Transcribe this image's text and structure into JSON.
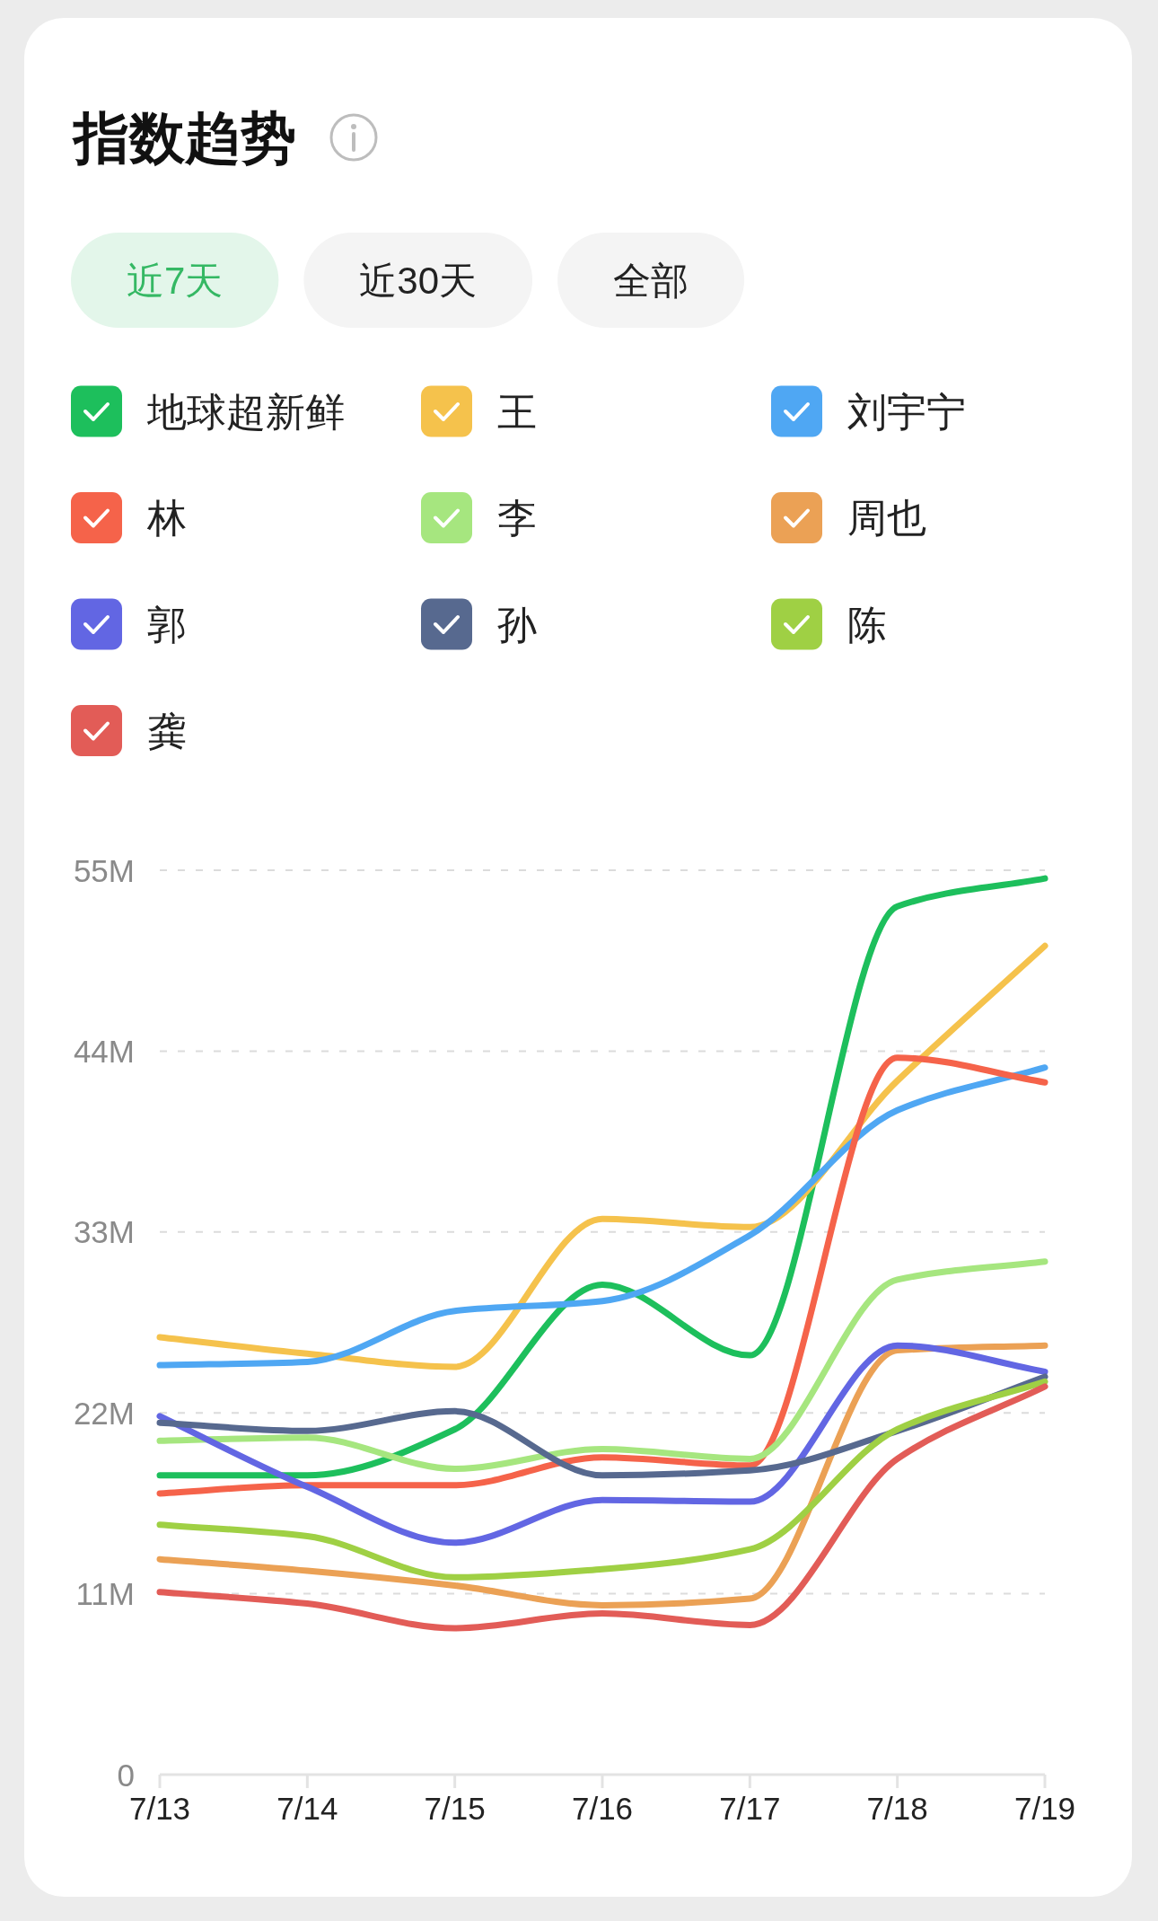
{
  "chart_data": {
    "type": "line",
    "title": "指数趋势",
    "annotations": [
      "近7天",
      "近30天",
      "全部"
    ],
    "categories": [
      "7/13",
      "7/14",
      "7/15",
      "7/16",
      "7/17",
      "7/18",
      "7/19"
    ],
    "series": [
      {
        "name": "地球超新鲜",
        "color": "#1dbf5c",
        "values": [
          18.2,
          18.2,
          21.0,
          29.8,
          25.5,
          52.8,
          54.5
        ]
      },
      {
        "name": "王",
        "color": "#f5c24c",
        "values": [
          26.6,
          25.6,
          24.8,
          33.8,
          33.3,
          42.2,
          50.4
        ]
      },
      {
        "name": "刘宇宁",
        "color": "#4fa7f3",
        "values": [
          24.9,
          25.1,
          28.2,
          28.8,
          32.8,
          40.4,
          43.0
        ]
      },
      {
        "name": "林",
        "color": "#f5634a",
        "values": [
          17.1,
          17.6,
          17.6,
          19.3,
          18.8,
          43.6,
          42.1
        ]
      },
      {
        "name": "李",
        "color": "#a6e67f",
        "values": [
          20.3,
          20.5,
          18.6,
          19.8,
          19.2,
          30.1,
          31.2
        ]
      },
      {
        "name": "周也",
        "color": "#eba155",
        "values": [
          13.1,
          12.4,
          11.5,
          10.3,
          10.7,
          25.8,
          26.1
        ]
      },
      {
        "name": "郭",
        "color": "#6266e3",
        "values": [
          21.8,
          17.5,
          14.1,
          16.7,
          16.6,
          26.1,
          24.5
        ]
      },
      {
        "name": "孙",
        "color": "#57698f",
        "values": [
          21.4,
          20.9,
          22.1,
          18.2,
          18.5,
          20.9,
          24.2
        ]
      },
      {
        "name": "陈",
        "color": "#9fd044",
        "values": [
          15.2,
          14.5,
          12.0,
          12.5,
          13.7,
          21.0,
          23.9
        ]
      },
      {
        "name": "龚",
        "color": "#e25c57",
        "values": [
          11.1,
          10.4,
          8.9,
          9.8,
          9.1,
          19.2,
          23.6
        ]
      }
    ],
    "ylim": [
      0,
      55
    ],
    "yticks": [
      0,
      {
        "value": 11,
        "label": "11M"
      },
      {
        "value": 22,
        "label": "22M"
      },
      {
        "value": 33,
        "label": "33M"
      },
      {
        "value": 44,
        "label": "44M"
      },
      {
        "value": 55,
        "label": "55M"
      }
    ],
    "grid": "y",
    "legend": "top",
    "line_style": "solid"
  }
}
